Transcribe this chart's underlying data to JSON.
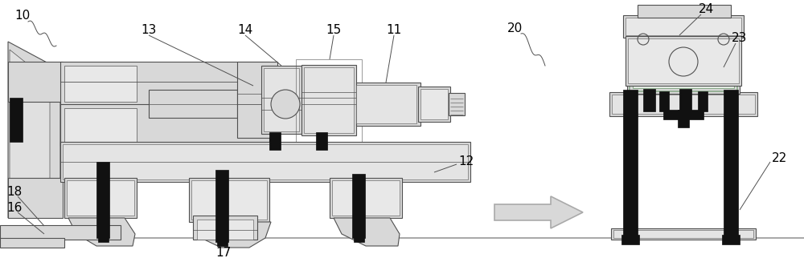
{
  "bg_color": "#ffffff",
  "line_color": "#505050",
  "dark_color": "#111111",
  "gray_color": "#aaaaaa",
  "light_gray": "#d8d8d8",
  "mid_gray": "#888888",
  "green_gray": "#8aaa8a",
  "figsize": [
    10.0,
    3.27
  ],
  "dpi": 100,
  "xlim": [
    0,
    1000
  ],
  "ylim": [
    0,
    327
  ]
}
